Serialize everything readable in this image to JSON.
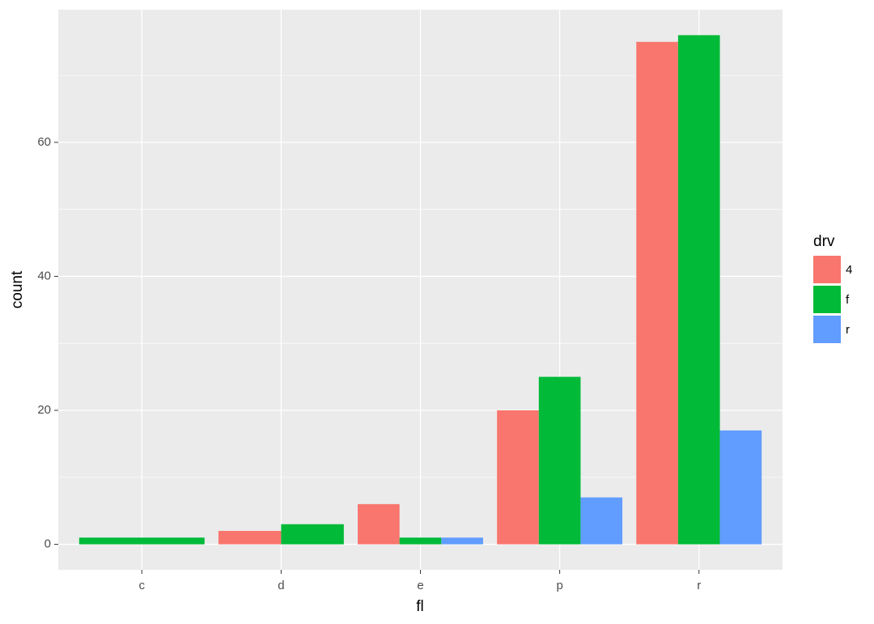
{
  "chart_data": {
    "type": "bar",
    "x_label": "fl",
    "y_label": "count",
    "categories": [
      "c",
      "d",
      "e",
      "p",
      "r"
    ],
    "series": [
      {
        "name": "4",
        "color": "#F8766D",
        "values": [
          null,
          2,
          6,
          20,
          75
        ]
      },
      {
        "name": "f",
        "color": "#00BA38",
        "values": [
          1,
          3,
          1,
          25,
          76
        ]
      },
      {
        "name": "r",
        "color": "#619CFF",
        "values": [
          null,
          null,
          1,
          7,
          17
        ]
      }
    ],
    "legend_title": "drv",
    "legend_position": "right",
    "ylim": [
      -3.8,
      79.8
    ],
    "yticks": [
      0,
      20,
      40,
      60
    ],
    "minor_yticks": [
      10,
      30,
      50,
      70
    ],
    "grid": true
  }
}
